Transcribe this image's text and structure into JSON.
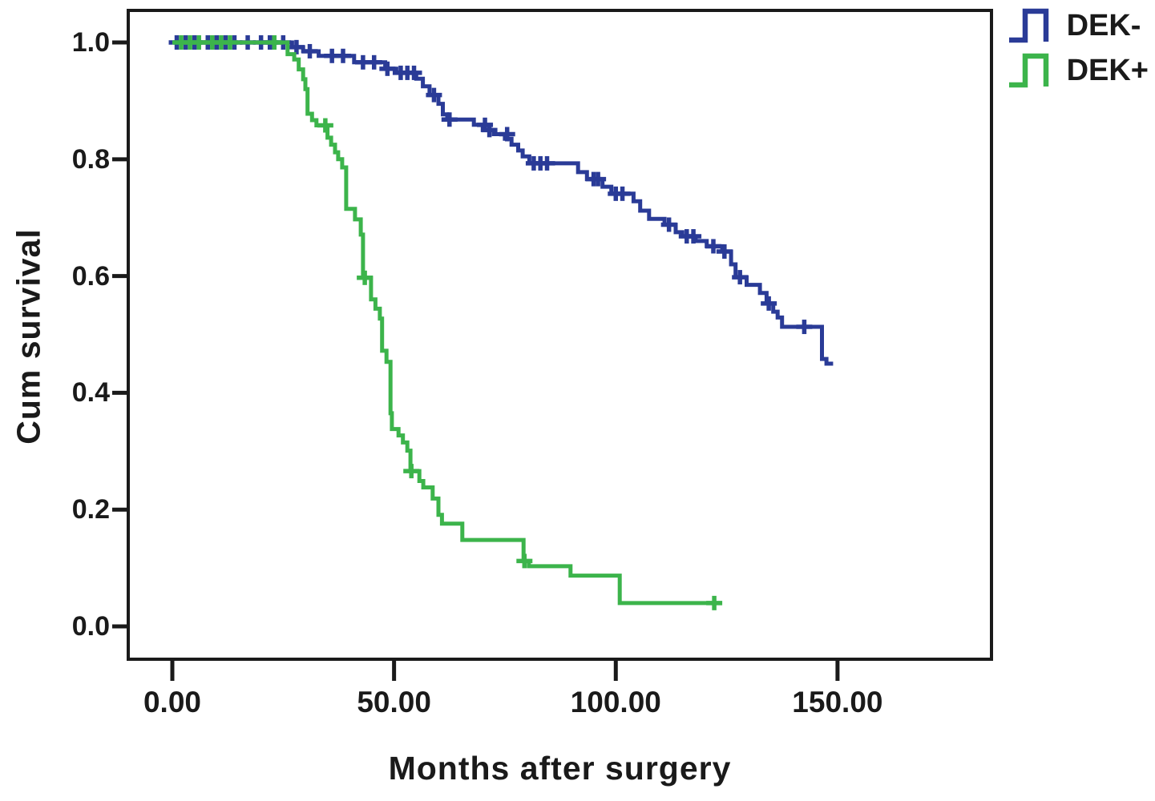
{
  "chart_data": {
    "type": "line",
    "subtype": "kaplan-meier-step-survival",
    "title": "",
    "xlabel": "Months after surgery",
    "ylabel": "Cum survival",
    "xlim": [
      -9.94,
      184.72
    ],
    "ylim": [
      -0.0562,
      1.0549
    ],
    "grid": false,
    "legend_position": "top-right-outside",
    "x_ticks": [
      {
        "value": 0,
        "label": "0.00"
      },
      {
        "value": 50,
        "label": "50.00"
      },
      {
        "value": 100,
        "label": "100.00"
      },
      {
        "value": 150,
        "label": "150.00"
      }
    ],
    "y_ticks": [
      {
        "value": 0.0,
        "label": "0.0"
      },
      {
        "value": 0.2,
        "label": "0.2"
      },
      {
        "value": 0.4,
        "label": "0.4"
      },
      {
        "value": 0.6,
        "label": "0.6"
      },
      {
        "value": 0.8,
        "label": "0.8"
      },
      {
        "value": 1.0,
        "label": "1.0"
      }
    ],
    "series": [
      {
        "name": "DEK-",
        "color": "#2a3b97",
        "points": [
          [
            0,
            1.0
          ],
          [
            27,
            1.0
          ],
          [
            27,
            0.992
          ],
          [
            29.5,
            0.992
          ],
          [
            29.5,
            0.985
          ],
          [
            33,
            0.985
          ],
          [
            33,
            0.977
          ],
          [
            41,
            0.977
          ],
          [
            41,
            0.966
          ],
          [
            48,
            0.966
          ],
          [
            48,
            0.955
          ],
          [
            50.5,
            0.955
          ],
          [
            50.5,
            0.948
          ],
          [
            55,
            0.948
          ],
          [
            55,
            0.938
          ],
          [
            56.5,
            0.938
          ],
          [
            56.5,
            0.925
          ],
          [
            58,
            0.925
          ],
          [
            58,
            0.91
          ],
          [
            60,
            0.91
          ],
          [
            60,
            0.895
          ],
          [
            61,
            0.895
          ],
          [
            61,
            0.877
          ],
          [
            62,
            0.877
          ],
          [
            62,
            0.868
          ],
          [
            68,
            0.868
          ],
          [
            68,
            0.859
          ],
          [
            70,
            0.859
          ],
          [
            70,
            0.85
          ],
          [
            72.5,
            0.85
          ],
          [
            72.5,
            0.843
          ],
          [
            75,
            0.843
          ],
          [
            75,
            0.835
          ],
          [
            76.5,
            0.835
          ],
          [
            76.5,
            0.825
          ],
          [
            78,
            0.825
          ],
          [
            78,
            0.815
          ],
          [
            79,
            0.815
          ],
          [
            79,
            0.805
          ],
          [
            80.5,
            0.805
          ],
          [
            80.5,
            0.793
          ],
          [
            91.5,
            0.793
          ],
          [
            91.5,
            0.778
          ],
          [
            93.5,
            0.778
          ],
          [
            93.5,
            0.766
          ],
          [
            97,
            0.766
          ],
          [
            97,
            0.753
          ],
          [
            99,
            0.753
          ],
          [
            99,
            0.741
          ],
          [
            104,
            0.741
          ],
          [
            104,
            0.728
          ],
          [
            105.5,
            0.728
          ],
          [
            105.5,
            0.712
          ],
          [
            107.5,
            0.712
          ],
          [
            107.5,
            0.698
          ],
          [
            111,
            0.698
          ],
          [
            111,
            0.688
          ],
          [
            113.5,
            0.688
          ],
          [
            113.5,
            0.675
          ],
          [
            115,
            0.675
          ],
          [
            115,
            0.668
          ],
          [
            118,
            0.668
          ],
          [
            118,
            0.66
          ],
          [
            120.5,
            0.66
          ],
          [
            120.5,
            0.651
          ],
          [
            124,
            0.651
          ],
          [
            124,
            0.642
          ],
          [
            126,
            0.642
          ],
          [
            126,
            0.62
          ],
          [
            127,
            0.62
          ],
          [
            127,
            0.598
          ],
          [
            129.5,
            0.598
          ],
          [
            129.5,
            0.585
          ],
          [
            132.5,
            0.585
          ],
          [
            132.5,
            0.571
          ],
          [
            134,
            0.571
          ],
          [
            134,
            0.553
          ],
          [
            135.5,
            0.553
          ],
          [
            135.5,
            0.539
          ],
          [
            136.5,
            0.539
          ],
          [
            136.5,
            0.529
          ],
          [
            137.5,
            0.529
          ],
          [
            137.5,
            0.513
          ],
          [
            146.5,
            0.513
          ],
          [
            146.5,
            0.458
          ],
          [
            147.5,
            0.458
          ],
          [
            147.5,
            0.45
          ],
          [
            149,
            0.45
          ]
        ],
        "censors": [
          [
            1,
            1.0
          ],
          [
            3,
            1.0
          ],
          [
            5,
            1.0
          ],
          [
            8,
            1.0
          ],
          [
            10,
            1.0
          ],
          [
            12,
            1.0
          ],
          [
            14,
            1.0
          ],
          [
            17,
            1.0
          ],
          [
            20,
            1.0
          ],
          [
            22,
            1.0
          ],
          [
            25,
            1.0
          ],
          [
            28,
            0.992
          ],
          [
            31,
            0.985
          ],
          [
            36,
            0.977
          ],
          [
            38.5,
            0.977
          ],
          [
            43,
            0.966
          ],
          [
            45.5,
            0.966
          ],
          [
            48.5,
            0.955
          ],
          [
            51.5,
            0.948
          ],
          [
            53,
            0.948
          ],
          [
            54.5,
            0.948
          ],
          [
            59,
            0.91
          ],
          [
            62.5,
            0.868
          ],
          [
            70.5,
            0.859
          ],
          [
            71.5,
            0.85
          ],
          [
            75.5,
            0.843
          ],
          [
            81.5,
            0.793
          ],
          [
            83,
            0.793
          ],
          [
            84.5,
            0.793
          ],
          [
            95,
            0.766
          ],
          [
            96,
            0.766
          ],
          [
            100,
            0.741
          ],
          [
            101.5,
            0.741
          ],
          [
            112,
            0.688
          ],
          [
            116,
            0.668
          ],
          [
            117.5,
            0.668
          ],
          [
            122,
            0.651
          ],
          [
            124.5,
            0.642
          ],
          [
            128,
            0.598
          ],
          [
            134.5,
            0.553
          ],
          [
            142.5,
            0.513
          ]
        ]
      },
      {
        "name": "DEK+",
        "color": "#3cb44b",
        "points": [
          [
            0,
            1.0
          ],
          [
            26,
            1.0
          ],
          [
            26,
            0.98
          ],
          [
            27.5,
            0.98
          ],
          [
            27.5,
            0.971
          ],
          [
            28.5,
            0.971
          ],
          [
            28.5,
            0.954
          ],
          [
            29.5,
            0.954
          ],
          [
            29.5,
            0.937
          ],
          [
            30,
            0.937
          ],
          [
            30,
            0.92
          ],
          [
            30.5,
            0.92
          ],
          [
            30.5,
            0.878
          ],
          [
            31.5,
            0.878
          ],
          [
            31.5,
            0.867
          ],
          [
            32.5,
            0.867
          ],
          [
            32.5,
            0.858
          ],
          [
            35,
            0.858
          ],
          [
            35,
            0.837
          ],
          [
            35.8,
            0.837
          ],
          [
            35.8,
            0.825
          ],
          [
            36.7,
            0.825
          ],
          [
            36.7,
            0.812
          ],
          [
            37.4,
            0.812
          ],
          [
            37.4,
            0.8
          ],
          [
            38.3,
            0.8
          ],
          [
            38.3,
            0.786
          ],
          [
            39.2,
            0.786
          ],
          [
            39.2,
            0.715
          ],
          [
            41.2,
            0.715
          ],
          [
            41.2,
            0.697
          ],
          [
            42.5,
            0.697
          ],
          [
            42.5,
            0.671
          ],
          [
            43,
            0.671
          ],
          [
            43,
            0.597
          ],
          [
            44.8,
            0.597
          ],
          [
            44.8,
            0.56
          ],
          [
            45.8,
            0.56
          ],
          [
            45.8,
            0.544
          ],
          [
            46.8,
            0.544
          ],
          [
            46.8,
            0.527
          ],
          [
            47.3,
            0.527
          ],
          [
            47.3,
            0.472
          ],
          [
            48.3,
            0.472
          ],
          [
            48.3,
            0.453
          ],
          [
            49.2,
            0.453
          ],
          [
            49.2,
            0.365
          ],
          [
            49.5,
            0.365
          ],
          [
            49.5,
            0.338
          ],
          [
            51,
            0.338
          ],
          [
            51,
            0.327
          ],
          [
            52,
            0.327
          ],
          [
            52,
            0.315
          ],
          [
            53,
            0.315
          ],
          [
            53,
            0.301
          ],
          [
            53.7,
            0.301
          ],
          [
            53.7,
            0.266
          ],
          [
            55.7,
            0.266
          ],
          [
            55.7,
            0.249
          ],
          [
            56.6,
            0.249
          ],
          [
            56.6,
            0.238
          ],
          [
            58.7,
            0.238
          ],
          [
            58.7,
            0.219
          ],
          [
            60,
            0.219
          ],
          [
            60,
            0.191
          ],
          [
            60.8,
            0.191
          ],
          [
            60.8,
            0.176
          ],
          [
            65.4,
            0.176
          ],
          [
            65.4,
            0.148
          ],
          [
            79.2,
            0.148
          ],
          [
            79.2,
            0.112
          ],
          [
            80.4,
            0.112
          ],
          [
            80.4,
            0.103
          ],
          [
            89.8,
            0.103
          ],
          [
            89.8,
            0.087
          ],
          [
            100.9,
            0.087
          ],
          [
            100.9,
            0.04
          ],
          [
            122.5,
            0.04
          ]
        ],
        "censors": [
          [
            2,
            1.0
          ],
          [
            4,
            1.0
          ],
          [
            6,
            1.0
          ],
          [
            9,
            1.0
          ],
          [
            11,
            1.0
          ],
          [
            13,
            1.0
          ],
          [
            23,
            1.0
          ],
          [
            34.5,
            0.858
          ],
          [
            43.4,
            0.597
          ],
          [
            53.9,
            0.266
          ],
          [
            79.4,
            0.112
          ],
          [
            122.2,
            0.04
          ]
        ]
      }
    ]
  },
  "styles": {
    "background": "#ffffff",
    "axis_color": "#1a1a1a",
    "text_color": "#1a1a1a",
    "dek_negative_color": "#2a3b97",
    "dek_positive_color": "#3cb44b"
  }
}
